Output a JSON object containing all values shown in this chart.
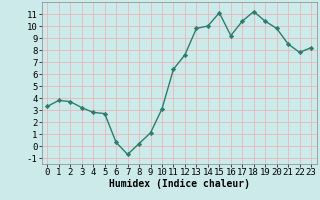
{
  "x": [
    0,
    1,
    2,
    3,
    4,
    5,
    6,
    7,
    8,
    9,
    10,
    11,
    12,
    13,
    14,
    15,
    16,
    17,
    18,
    19,
    20,
    21,
    22,
    23
  ],
  "y": [
    3.3,
    3.8,
    3.7,
    3.2,
    2.8,
    2.7,
    0.3,
    -0.7,
    0.2,
    1.1,
    3.1,
    6.4,
    7.6,
    9.8,
    10.0,
    11.1,
    9.2,
    10.4,
    11.2,
    10.4,
    9.8,
    8.5,
    7.8,
    8.2
  ],
  "line_color": "#2d7d6e",
  "marker": "D",
  "marker_size": 2.2,
  "bg_color": "#cceaea",
  "grid_color": "#e8b8b8",
  "xlabel": "Humidex (Indice chaleur)",
  "xlabel_fontsize": 7,
  "tick_fontsize": 6.5,
  "ylim": [
    -1.5,
    12.0
  ],
  "xlim": [
    -0.5,
    23.5
  ],
  "yticks": [
    -1,
    0,
    1,
    2,
    3,
    4,
    5,
    6,
    7,
    8,
    9,
    10,
    11
  ],
  "xticks": [
    0,
    1,
    2,
    3,
    4,
    5,
    6,
    7,
    8,
    9,
    10,
    11,
    12,
    13,
    14,
    15,
    16,
    17,
    18,
    19,
    20,
    21,
    22,
    23
  ],
  "line_width": 1.0
}
